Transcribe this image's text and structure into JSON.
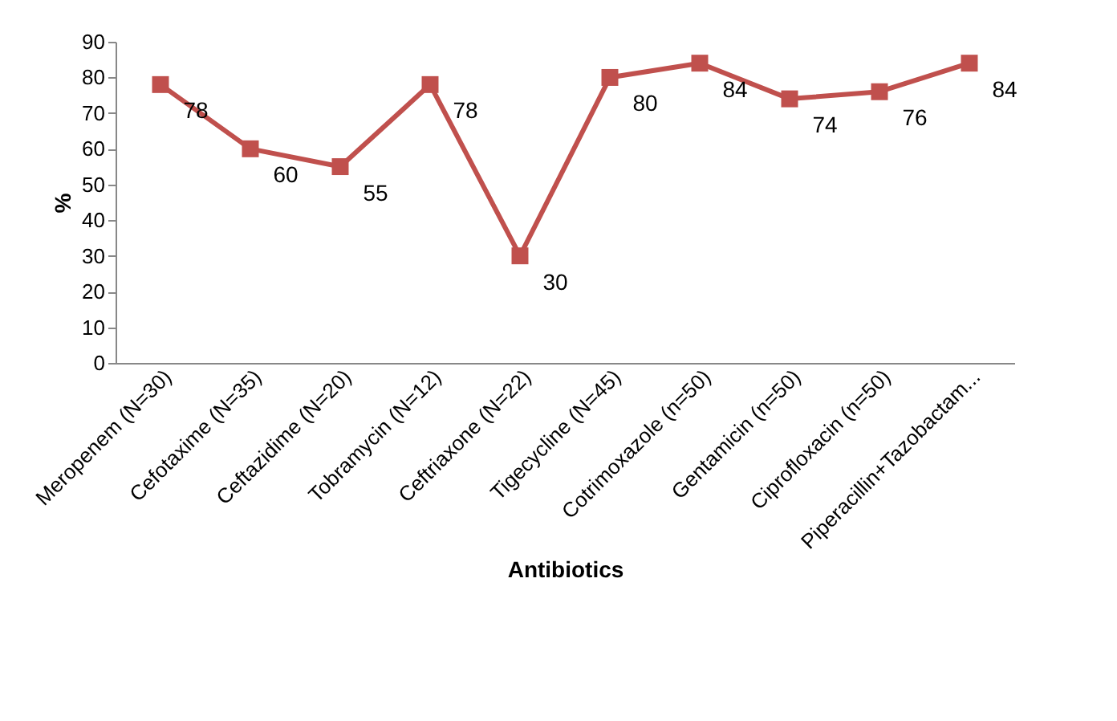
{
  "chart_data": {
    "type": "line",
    "xlabel": "Antibiotics",
    "ylabel": "%",
    "categories": [
      "Meropenem (N=30)",
      "Cefotaxime (N=35)",
      "Ceftazidime (N=20)",
      "Tobramycin (N=12)",
      "Ceftriaxone (N=22)",
      "Tigecycline (N=45)",
      "Cotrimoxazole (n=50)",
      "Gentamicin (n=50)",
      "Ciprofloxacin (n=50)",
      "Piperacillin+Tazobactam..."
    ],
    "series": [
      {
        "color": "#c0504d",
        "values": [
          78,
          60,
          55,
          78,
          30,
          80,
          84,
          74,
          76,
          84
        ]
      }
    ],
    "ylim": [
      0,
      90
    ],
    "yticks": [
      0,
      10,
      20,
      30,
      40,
      50,
      60,
      70,
      80,
      90
    ],
    "marker": "square",
    "line_style": "solid",
    "data_labels": true,
    "grid": false,
    "legend": false
  }
}
